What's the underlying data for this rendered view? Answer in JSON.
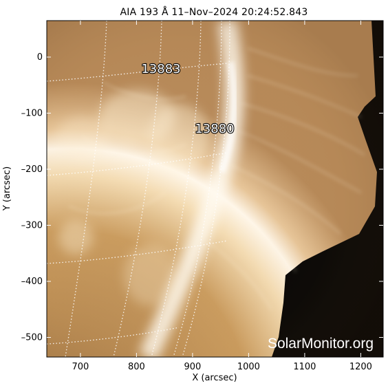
{
  "title": "AIA 193 Å 11–Nov–2024  20:24:52.843",
  "watermark": "SolarMonitor.org",
  "x_axis": {
    "label": "X (arcsec)",
    "range": [
      640,
      1240
    ],
    "ticks": [
      {
        "value": 700,
        "label": "700"
      },
      {
        "value": 800,
        "label": "800"
      },
      {
        "value": 900,
        "label": "900"
      },
      {
        "value": 1000,
        "label": "1000"
      },
      {
        "value": 1100,
        "label": "1100"
      },
      {
        "value": 1200,
        "label": "1200"
      }
    ]
  },
  "y_axis": {
    "label": "Y (arcsec)",
    "range": [
      -535,
      65
    ],
    "ticks": [
      {
        "value": 0,
        "label": "0"
      },
      {
        "value": -100,
        "label": "–100"
      },
      {
        "value": -200,
        "label": "–200"
      },
      {
        "value": -300,
        "label": "–300"
      },
      {
        "value": -400,
        "label": "–400"
      },
      {
        "value": -500,
        "label": "–500"
      }
    ]
  },
  "active_regions": [
    {
      "label": "13883"
    },
    {
      "label": "13880"
    }
  ],
  "colors": {
    "sun_core": "#fff6e6",
    "sun_mid": "#d9b57a",
    "sun_dark": "#a07340",
    "sky": "#000000",
    "grid": "#ffffff"
  }
}
